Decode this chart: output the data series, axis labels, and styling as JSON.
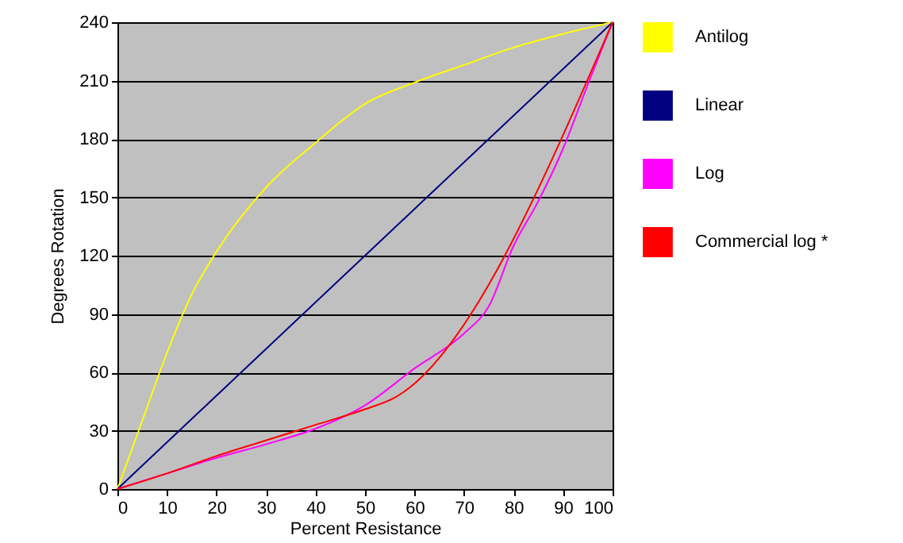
{
  "chart_data": {
    "type": "line",
    "xlabel": "Percent Resistance",
    "ylabel": "Degrees Rotation",
    "xlim": [
      0,
      100
    ],
    "ylim": [
      0,
      240
    ],
    "xticks": [
      0,
      10,
      20,
      30,
      40,
      50,
      60,
      70,
      80,
      90,
      100
    ],
    "yticks": [
      0,
      30,
      60,
      90,
      120,
      150,
      180,
      210,
      240
    ],
    "grid": "y",
    "legend": "right",
    "marker": "none",
    "line_style": "solid",
    "series": [
      {
        "name": "Antilog",
        "color": "#ffff00",
        "x": [
          0,
          5,
          10,
          15,
          20,
          30,
          40,
          50,
          60,
          70,
          80,
          90,
          100
        ],
        "values": [
          0,
          35,
          70,
          100,
          122,
          155,
          178,
          198,
          209,
          218,
          227,
          234,
          240
        ]
      },
      {
        "name": "Linear",
        "color": "#000080",
        "x": [
          0,
          100
        ],
        "values": [
          0,
          240
        ]
      },
      {
        "name": "Log",
        "color": "#ff00ff",
        "x": [
          0,
          10,
          20,
          30,
          40,
          50,
          60,
          70,
          75,
          80,
          85,
          90,
          95,
          100
        ],
        "values": [
          0,
          8,
          16,
          23,
          31,
          43,
          62,
          80,
          94,
          125,
          148,
          175,
          208,
          240
        ]
      },
      {
        "name": "Commercial log *",
        "color": "#ff0000",
        "x": [
          0,
          10,
          20,
          30,
          40,
          50,
          56,
          100
        ],
        "values": [
          0,
          8,
          17,
          25,
          33,
          41,
          47,
          240
        ]
      }
    ]
  }
}
